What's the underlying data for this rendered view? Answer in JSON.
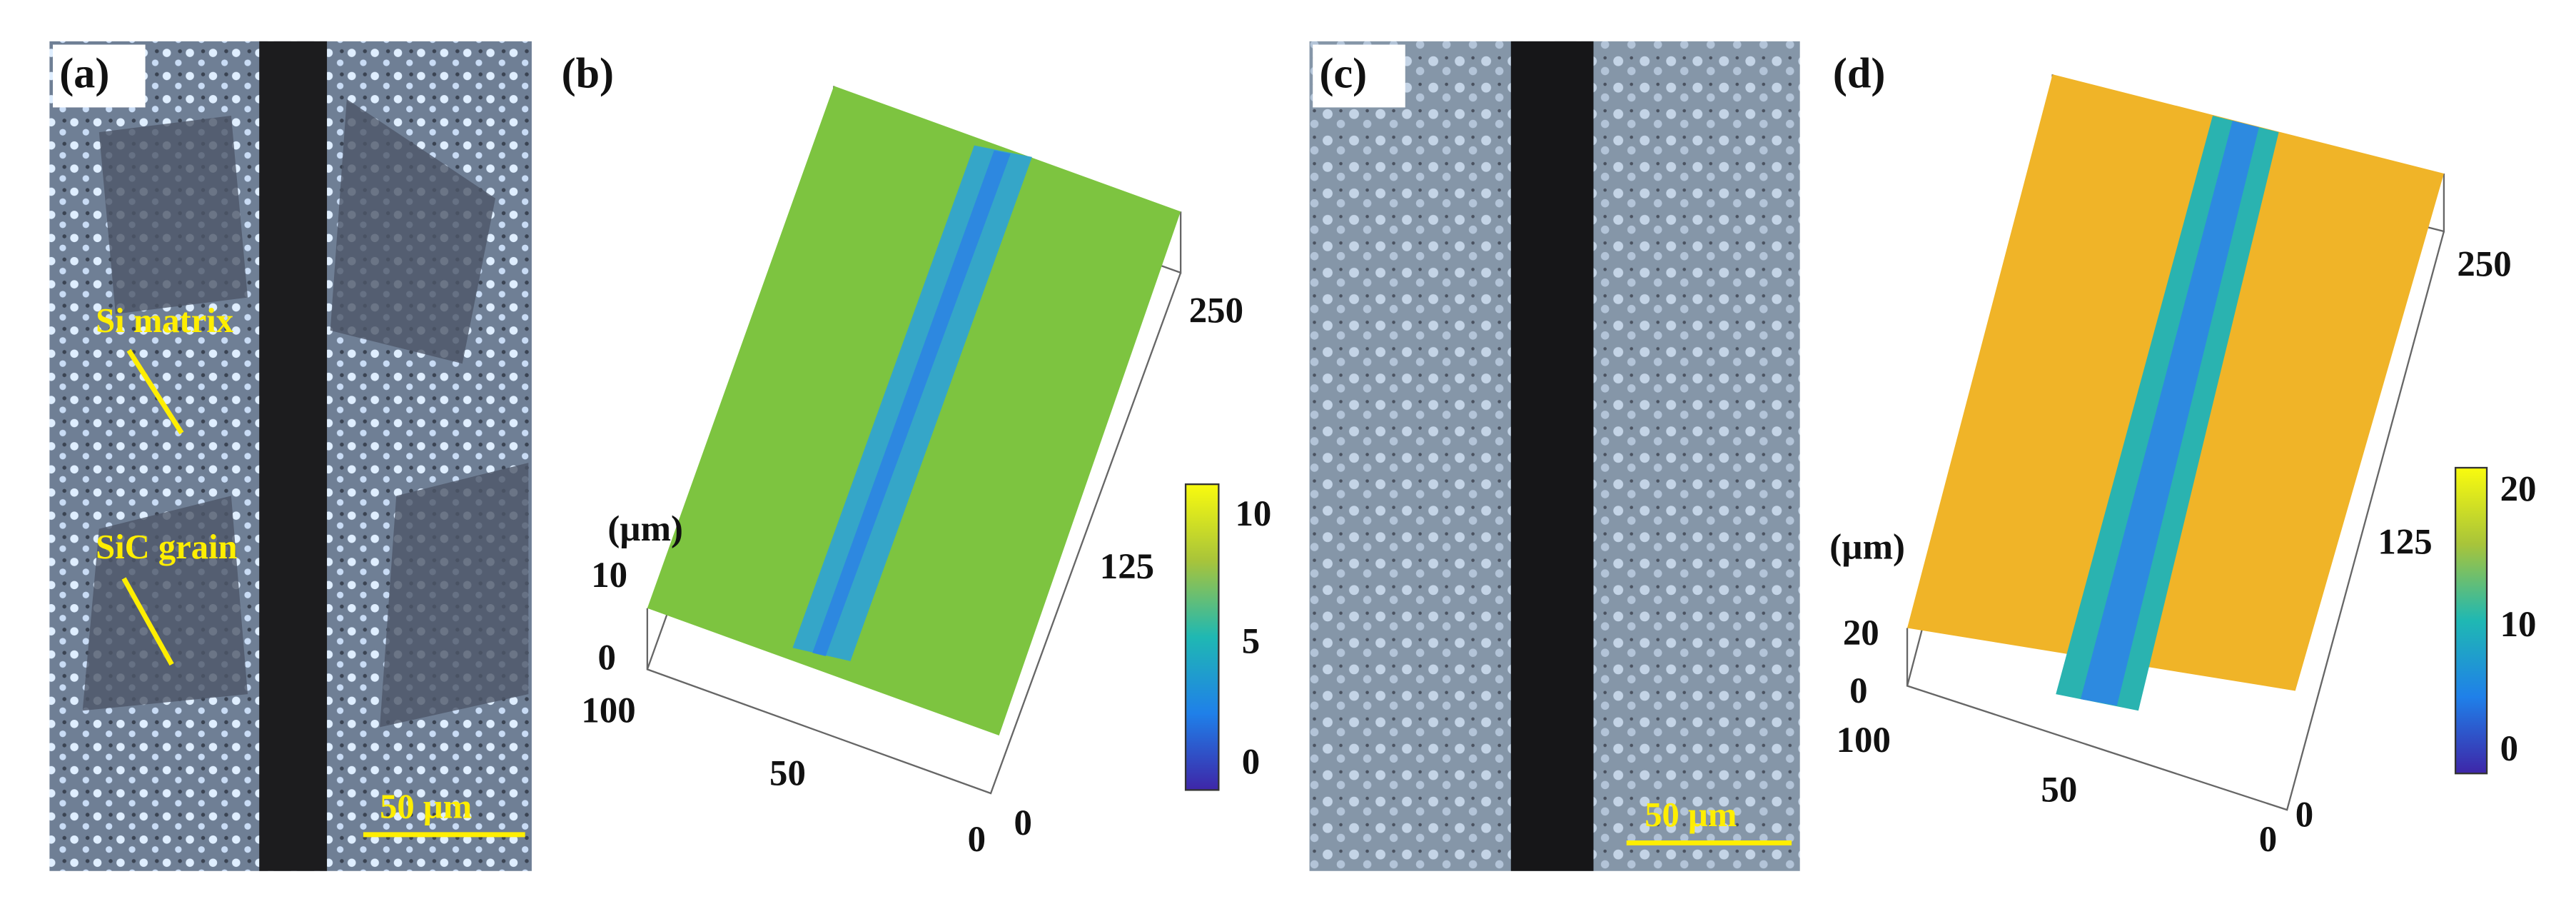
{
  "panels": [
    {
      "label": "(a)",
      "annotations": [
        "Si matrix",
        "SiC grain"
      ],
      "scale_bar": "50 µm"
    },
    {
      "label": "(b)",
      "z_unit": "(µm)",
      "z_ticks": [
        "10",
        "0"
      ],
      "x_ticks": [
        "100",
        "50",
        "0"
      ],
      "y_ticks": [
        "0",
        "125",
        "250"
      ],
      "colorbar_ticks": [
        "10",
        "5",
        "0"
      ]
    },
    {
      "label": "(c)",
      "scale_bar": "50 µm"
    },
    {
      "label": "(d)",
      "z_unit": "(µm)",
      "z_ticks": [
        "20",
        "0"
      ],
      "x_ticks": [
        "100",
        "50",
        "0"
      ],
      "y_ticks": [
        "0",
        "125",
        "250"
      ],
      "colorbar_ticks": [
        "20",
        "10",
        "0"
      ]
    }
  ]
}
